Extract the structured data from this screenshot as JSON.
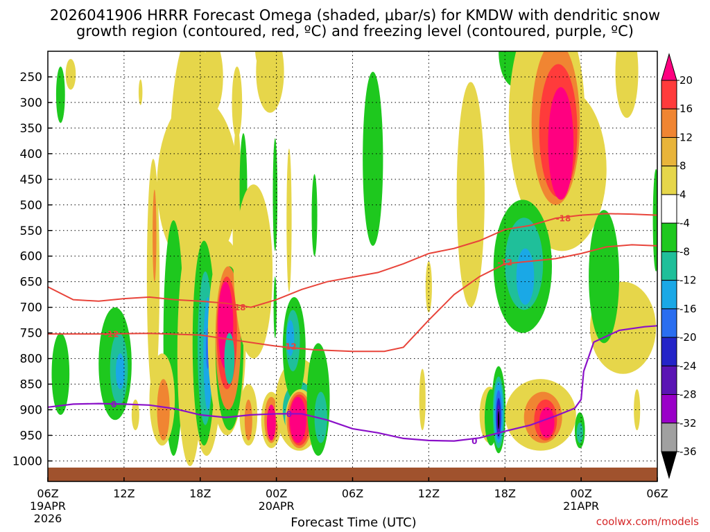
{
  "chart_data": {
    "type": "heatmap",
    "title_line1": "2026041906 HRRR Forecast Omega (shaded, μbar/s) for KMDW with dendritic snow",
    "title_line2": "growth region (contoured, red, ºC) and freezing level (contoured, purple, ºC)",
    "xlabel": "Forecast Time (UTC)",
    "credit": "coolwx.com/models",
    "x_range_hours": [
      0,
      48
    ],
    "y_range_hpa": [
      1040,
      200
    ],
    "y_ticks": [
      "250",
      "300",
      "350",
      "400",
      "450",
      "500",
      "550",
      "600",
      "650",
      "700",
      "750",
      "800",
      "850",
      "900",
      "950",
      "1000"
    ],
    "y_tick_values": [
      250,
      300,
      350,
      400,
      450,
      500,
      550,
      600,
      650,
      700,
      750,
      800,
      850,
      900,
      950,
      1000
    ],
    "x_ticks": [
      {
        "hour": 0,
        "label": "06Z",
        "sub1": "19APR",
        "sub2": "2026"
      },
      {
        "hour": 6,
        "label": "12Z",
        "sub1": "",
        "sub2": ""
      },
      {
        "hour": 12,
        "label": "18Z",
        "sub1": "",
        "sub2": ""
      },
      {
        "hour": 18,
        "label": "00Z",
        "sub1": "20APR",
        "sub2": ""
      },
      {
        "hour": 24,
        "label": "06Z",
        "sub1": "",
        "sub2": ""
      },
      {
        "hour": 30,
        "label": "12Z",
        "sub1": "",
        "sub2": ""
      },
      {
        "hour": 36,
        "label": "18Z",
        "sub1": "",
        "sub2": ""
      },
      {
        "hour": 42,
        "label": "00Z",
        "sub1": "21APR",
        "sub2": ""
      },
      {
        "hour": 48,
        "label": "06Z",
        "sub1": "",
        "sub2": ""
      }
    ],
    "colorbar": {
      "labels": [
        "20",
        "16",
        "12",
        "8",
        "4",
        "-4",
        "-8",
        "-12",
        "-16",
        "-20",
        "-24",
        "-28",
        "-32",
        "-36"
      ],
      "colors": [
        "#ff0080",
        "#ff3b3b",
        "#f08532",
        "#e8b43a",
        "#e6d64a",
        "#ffffff",
        "#1ec81e",
        "#1fbf9a",
        "#1aa8e6",
        "#2a6ef0",
        "#2424c8",
        "#5a14b4",
        "#9a00c8",
        "#a0a0a0",
        "#000000"
      ]
    },
    "contour_labels": {
      "dgz_minus12": "-12",
      "dgz_minus18": "-18",
      "freezing": "0"
    },
    "contours": {
      "dgz_minus12_early": [
        [
          0,
          752
        ],
        [
          4,
          752
        ],
        [
          8,
          751
        ],
        [
          12,
          754
        ],
        [
          15,
          765
        ],
        [
          18,
          776
        ],
        [
          21,
          783
        ],
        [
          24,
          786
        ],
        [
          26.5,
          786
        ],
        [
          28,
          778
        ],
        [
          30,
          725
        ],
        [
          32,
          675
        ],
        [
          34,
          640
        ],
        [
          36,
          615
        ],
        [
          38,
          610
        ],
        [
          40,
          605
        ],
        [
          42,
          595
        ],
        [
          44,
          582
        ],
        [
          46,
          578
        ],
        [
          48,
          580
        ]
      ],
      "dgz_minus18": [
        [
          0,
          660
        ],
        [
          2,
          685
        ],
        [
          4,
          688
        ],
        [
          6,
          683
        ],
        [
          8,
          680
        ],
        [
          10,
          685
        ],
        [
          12,
          688
        ],
        [
          14,
          692
        ],
        [
          16,
          700
        ],
        [
          18,
          685
        ],
        [
          20,
          665
        ],
        [
          22,
          650
        ],
        [
          24,
          641
        ],
        [
          26,
          632
        ],
        [
          28,
          615
        ],
        [
          30,
          595
        ],
        [
          32,
          585
        ],
        [
          34,
          570
        ],
        [
          36,
          548
        ],
        [
          38,
          540
        ],
        [
          40,
          526
        ],
        [
          42,
          520
        ],
        [
          44,
          517
        ],
        [
          46,
          518
        ],
        [
          48,
          520
        ]
      ],
      "freezing": [
        [
          0,
          895
        ],
        [
          2,
          889
        ],
        [
          4,
          888
        ],
        [
          6,
          889
        ],
        [
          8,
          891
        ],
        [
          10,
          898
        ],
        [
          12,
          910
        ],
        [
          14,
          915
        ],
        [
          16,
          910
        ],
        [
          18,
          908
        ],
        [
          20,
          908
        ],
        [
          22,
          920
        ],
        [
          24,
          937
        ],
        [
          26,
          945
        ],
        [
          28,
          956
        ],
        [
          30,
          960
        ],
        [
          32,
          961
        ],
        [
          34,
          955
        ],
        [
          36,
          942
        ],
        [
          38,
          930
        ],
        [
          40,
          912
        ],
        [
          41.5,
          897
        ],
        [
          42,
          880
        ],
        [
          42.2,
          825
        ],
        [
          43,
          768
        ],
        [
          45,
          745
        ],
        [
          47,
          738
        ],
        [
          48,
          736
        ]
      ]
    },
    "omega_regions": [
      {
        "level": "g",
        "cx": 1.0,
        "cy": 285,
        "rx": 0.35,
        "ry": 55
      },
      {
        "level": "g",
        "cx": 1.0,
        "cy": 830,
        "rx": 0.7,
        "ry": 80
      },
      {
        "level": "g",
        "cx": 5.3,
        "cy": 810,
        "rx": 1.3,
        "ry": 110
      },
      {
        "level": "t",
        "cx": 5.6,
        "cy": 820,
        "rx": 0.7,
        "ry": 70
      },
      {
        "level": "c",
        "cx": 5.7,
        "cy": 825,
        "rx": 0.35,
        "ry": 35
      },
      {
        "level": "y",
        "cx": 1.8,
        "cy": 245,
        "rx": 0.4,
        "ry": 30
      },
      {
        "level": "y",
        "cx": 6.9,
        "cy": 910,
        "rx": 0.3,
        "ry": 30
      },
      {
        "level": "y",
        "cx": 7.3,
        "cy": 280,
        "rx": 0.15,
        "ry": 25
      },
      {
        "level": "y",
        "cx": 11.4,
        "cy": 420,
        "rx": 1.8,
        "ry": 260
      },
      {
        "level": "y",
        "cx": 11.8,
        "cy": 460,
        "rx": 3.2,
        "ry": 170
      },
      {
        "level": "y",
        "cx": 13.0,
        "cy": 250,
        "rx": 0.8,
        "ry": 70
      },
      {
        "level": "y",
        "cx": 14.9,
        "cy": 300,
        "rx": 0.4,
        "ry": 70
      },
      {
        "level": "y",
        "cx": 16.5,
        "cy": 180,
        "rx": 0.2,
        "ry": 40
      },
      {
        "level": "y",
        "cx": 17.5,
        "cy": 240,
        "rx": 1.1,
        "ry": 80
      },
      {
        "level": "y",
        "cx": 17.1,
        "cy": 190,
        "rx": 0.3,
        "ry": 40
      },
      {
        "level": "y",
        "cx": 8.3,
        "cy": 640,
        "rx": 0.5,
        "ry": 230
      },
      {
        "level": "o",
        "cx": 8.4,
        "cy": 560,
        "rx": 0.15,
        "ry": 90
      },
      {
        "level": "g",
        "cx": 9.9,
        "cy": 760,
        "rx": 0.8,
        "ry": 230
      },
      {
        "level": "y",
        "cx": 9.0,
        "cy": 880,
        "rx": 1.0,
        "ry": 90
      },
      {
        "level": "o",
        "cx": 9.1,
        "cy": 900,
        "rx": 0.5,
        "ry": 60
      },
      {
        "level": "y",
        "cx": 11.2,
        "cy": 790,
        "rx": 1.0,
        "ry": 220
      },
      {
        "level": "y",
        "cx": 12.5,
        "cy": 760,
        "rx": 1.3,
        "ry": 230
      },
      {
        "level": "g",
        "cx": 12.3,
        "cy": 770,
        "rx": 0.9,
        "ry": 200
      },
      {
        "level": "t",
        "cx": 12.4,
        "cy": 780,
        "rx": 0.6,
        "ry": 150
      },
      {
        "level": "c",
        "cx": 12.6,
        "cy": 790,
        "rx": 0.35,
        "ry": 110
      },
      {
        "level": "b",
        "cx": 12.6,
        "cy": 780,
        "rx": 0.15,
        "ry": 40
      },
      {
        "level": "y",
        "cx": 14.1,
        "cy": 760,
        "rx": 1.5,
        "ry": 190
      },
      {
        "level": "g",
        "cx": 14.3,
        "cy": 780,
        "rx": 1.1,
        "ry": 160
      },
      {
        "level": "o",
        "cx": 14.2,
        "cy": 760,
        "rx": 1.0,
        "ry": 140
      },
      {
        "level": "r",
        "cx": 14.1,
        "cy": 750,
        "rx": 0.8,
        "ry": 110
      },
      {
        "level": "m",
        "cx": 14.0,
        "cy": 735,
        "rx": 0.6,
        "ry": 85
      },
      {
        "level": "t",
        "cx": 14.3,
        "cy": 800,
        "rx": 0.4,
        "ry": 50
      },
      {
        "level": "y",
        "cx": 14.9,
        "cy": 520,
        "rx": 0.35,
        "ry": 180
      },
      {
        "level": "g",
        "cx": 15.4,
        "cy": 470,
        "rx": 0.3,
        "ry": 110
      },
      {
        "level": "y",
        "cx": 16.2,
        "cy": 630,
        "rx": 1.5,
        "ry": 170
      },
      {
        "level": "y",
        "cx": 15.8,
        "cy": 910,
        "rx": 0.7,
        "ry": 60
      },
      {
        "level": "o",
        "cx": 15.8,
        "cy": 920,
        "rx": 0.3,
        "ry": 40
      },
      {
        "level": "g",
        "cx": 17.9,
        "cy": 480,
        "rx": 0.18,
        "ry": 110
      },
      {
        "level": "g",
        "cx": 17.9,
        "cy": 700,
        "rx": 0.12,
        "ry": 60
      },
      {
        "level": "y",
        "cx": 17.6,
        "cy": 920,
        "rx": 0.8,
        "ry": 55
      },
      {
        "level": "o",
        "cx": 17.6,
        "cy": 920,
        "rx": 0.55,
        "ry": 45
      },
      {
        "level": "m",
        "cx": 17.6,
        "cy": 925,
        "rx": 0.35,
        "ry": 35
      },
      {
        "level": "y",
        "cx": 19.0,
        "cy": 530,
        "rx": 0.2,
        "ry": 140
      },
      {
        "level": "y",
        "cx": 19.8,
        "cy": 890,
        "rx": 1.9,
        "ry": 90
      },
      {
        "level": "t",
        "cx": 19.8,
        "cy": 900,
        "rx": 1.3,
        "ry": 55
      },
      {
        "level": "g",
        "cx": 19.4,
        "cy": 780,
        "rx": 0.9,
        "ry": 100
      },
      {
        "level": "t",
        "cx": 19.3,
        "cy": 765,
        "rx": 0.55,
        "ry": 60
      },
      {
        "level": "c",
        "cx": 19.1,
        "cy": 760,
        "rx": 0.3,
        "ry": 35
      },
      {
        "level": "y",
        "cx": 19.9,
        "cy": 920,
        "rx": 1.2,
        "ry": 60
      },
      {
        "level": "o",
        "cx": 19.8,
        "cy": 920,
        "rx": 1.0,
        "ry": 55
      },
      {
        "level": "r",
        "cx": 19.8,
        "cy": 920,
        "rx": 0.85,
        "ry": 50
      },
      {
        "level": "m",
        "cx": 19.7,
        "cy": 920,
        "rx": 0.65,
        "ry": 45
      },
      {
        "level": "g",
        "cx": 21.3,
        "cy": 880,
        "rx": 0.9,
        "ry": 110
      },
      {
        "level": "t",
        "cx": 21.5,
        "cy": 915,
        "rx": 0.5,
        "ry": 50
      },
      {
        "level": "g",
        "cx": 21.0,
        "cy": 520,
        "rx": 0.22,
        "ry": 80
      },
      {
        "level": "g",
        "cx": 25.6,
        "cy": 410,
        "rx": 0.8,
        "ry": 170
      },
      {
        "level": "y",
        "cx": 29.5,
        "cy": 880,
        "rx": 0.25,
        "ry": 60
      },
      {
        "level": "y",
        "cx": 33.3,
        "cy": 480,
        "rx": 1.1,
        "ry": 220
      },
      {
        "level": "y",
        "cx": 30.0,
        "cy": 660,
        "rx": 0.25,
        "ry": 50
      },
      {
        "level": "y",
        "cx": 34.8,
        "cy": 910,
        "rx": 0.8,
        "ry": 55
      },
      {
        "level": "g",
        "cx": 34.9,
        "cy": 915,
        "rx": 0.5,
        "ry": 55
      },
      {
        "level": "g",
        "cx": 35.5,
        "cy": 900,
        "rx": 0.55,
        "ry": 85
      },
      {
        "level": "t",
        "cx": 35.5,
        "cy": 905,
        "rx": 0.45,
        "ry": 70
      },
      {
        "level": "c",
        "cx": 35.5,
        "cy": 905,
        "rx": 0.35,
        "ry": 60
      },
      {
        "level": "b",
        "cx": 35.5,
        "cy": 910,
        "rx": 0.25,
        "ry": 48
      },
      {
        "level": "n",
        "cx": 35.5,
        "cy": 915,
        "rx": 0.18,
        "ry": 38
      },
      {
        "level": "p",
        "cx": 35.5,
        "cy": 918,
        "rx": 0.12,
        "ry": 28
      },
      {
        "level": "k",
        "cx": 35.5,
        "cy": 920,
        "rx": 0.06,
        "ry": 18
      },
      {
        "level": "g",
        "cx": 36.8,
        "cy": 200,
        "rx": 1.3,
        "ry": 70
      },
      {
        "level": "y",
        "cx": 39.3,
        "cy": 330,
        "rx": 3.0,
        "ry": 220
      },
      {
        "level": "y",
        "cx": 40.5,
        "cy": 430,
        "rx": 3.5,
        "ry": 160
      },
      {
        "level": "o",
        "cx": 40.0,
        "cy": 340,
        "rx": 1.9,
        "ry": 160
      },
      {
        "level": "r",
        "cx": 40.2,
        "cy": 355,
        "rx": 1.5,
        "ry": 130
      },
      {
        "level": "m",
        "cx": 40.4,
        "cy": 380,
        "rx": 1.0,
        "ry": 110
      },
      {
        "level": "y",
        "cx": 45.6,
        "cy": 240,
        "rx": 0.9,
        "ry": 90
      },
      {
        "level": "y",
        "cx": 45.3,
        "cy": 740,
        "rx": 2.6,
        "ry": 90
      },
      {
        "level": "g",
        "cx": 37.4,
        "cy": 620,
        "rx": 2.3,
        "ry": 130
      },
      {
        "level": "t",
        "cx": 37.5,
        "cy": 615,
        "rx": 1.5,
        "ry": 90
      },
      {
        "level": "c",
        "cx": 37.6,
        "cy": 640,
        "rx": 0.7,
        "ry": 55
      },
      {
        "level": "y",
        "cx": 38.8,
        "cy": 910,
        "rx": 2.8,
        "ry": 70
      },
      {
        "level": "o",
        "cx": 39.0,
        "cy": 915,
        "rx": 1.5,
        "ry": 50
      },
      {
        "level": "r",
        "cx": 39.2,
        "cy": 920,
        "rx": 0.9,
        "ry": 40
      },
      {
        "level": "m",
        "cx": 39.3,
        "cy": 925,
        "rx": 0.6,
        "ry": 30
      },
      {
        "level": "g",
        "cx": 43.8,
        "cy": 640,
        "rx": 1.2,
        "ry": 130
      },
      {
        "level": "g",
        "cx": 41.9,
        "cy": 940,
        "rx": 0.4,
        "ry": 35
      },
      {
        "level": "t",
        "cx": 41.9,
        "cy": 945,
        "rx": 0.25,
        "ry": 20
      },
      {
        "level": "y",
        "cx": 46.4,
        "cy": 900,
        "rx": 0.25,
        "ry": 40
      },
      {
        "level": "g",
        "cx": 47.9,
        "cy": 530,
        "rx": 0.25,
        "ry": 100
      }
    ]
  }
}
